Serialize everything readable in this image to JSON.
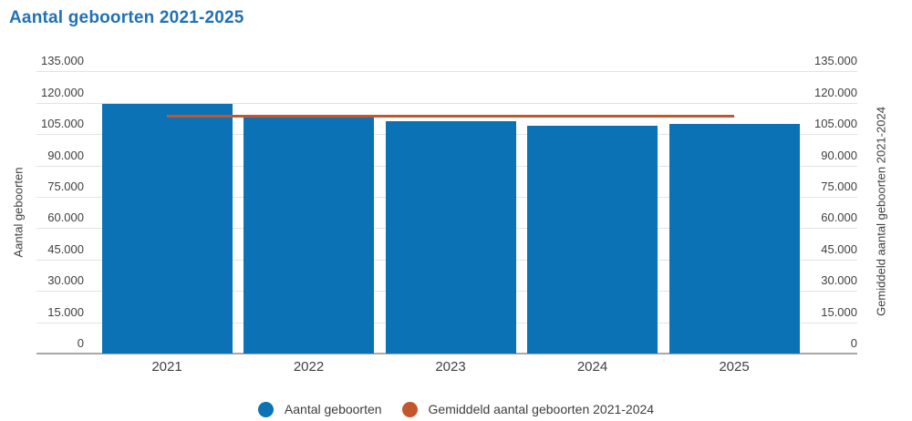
{
  "title": "Aantal geboorten 2021-2025",
  "colors": {
    "title": "#2171b5",
    "bars": "#0b72b5",
    "avg_line": "#c5562b",
    "tick_text": "#404040",
    "gridline": "#e3e3e3",
    "axis_line": "#a8a8a8"
  },
  "y_axis_left": {
    "title": "Aantal geboorten",
    "tick_labels": [
      "0",
      "15.000",
      "30.000",
      "45.000",
      "60.000",
      "75.000",
      "90.000",
      "105.000",
      "120.000",
      "135.000"
    ]
  },
  "y_axis_right": {
    "title": "Gemiddeld aantal geboorten 2021-2024",
    "tick_labels": [
      "0",
      "15.000",
      "30.000",
      "45.000",
      "60.000",
      "75.000",
      "90.000",
      "105.000",
      "120.000",
      "135.000"
    ]
  },
  "legend": {
    "items": [
      {
        "label": "Aantal geboorten",
        "color": "#0b72b5",
        "marker": "circle-icon"
      },
      {
        "label": "Gemiddeld aantal geboorten 2021-2024",
        "color": "#c5562b",
        "marker": "circle-icon"
      }
    ]
  },
  "chart_data": {
    "type": "bar",
    "title": "Aantal geboorten 2021-2025",
    "categories": [
      "2021",
      "2022",
      "2023",
      "2024",
      "2025"
    ],
    "series": [
      {
        "name": "Aantal geboorten",
        "type": "bar",
        "values": [
          119500,
          114000,
          111000,
          109000,
          110000
        ]
      },
      {
        "name": "Gemiddeld aantal geboorten 2021-2024",
        "type": "line",
        "values": [
          113400,
          113400,
          113400,
          113400,
          113400
        ]
      }
    ],
    "ylabel_left": "Aantal geboorten",
    "ylabel_right": "Gemiddeld aantal geboorten 2021-2024",
    "ylim": [
      0,
      135000
    ],
    "ytick_step": 15000,
    "ytick_format": "thousands-dot",
    "grid": true,
    "legend_position": "bottom"
  }
}
